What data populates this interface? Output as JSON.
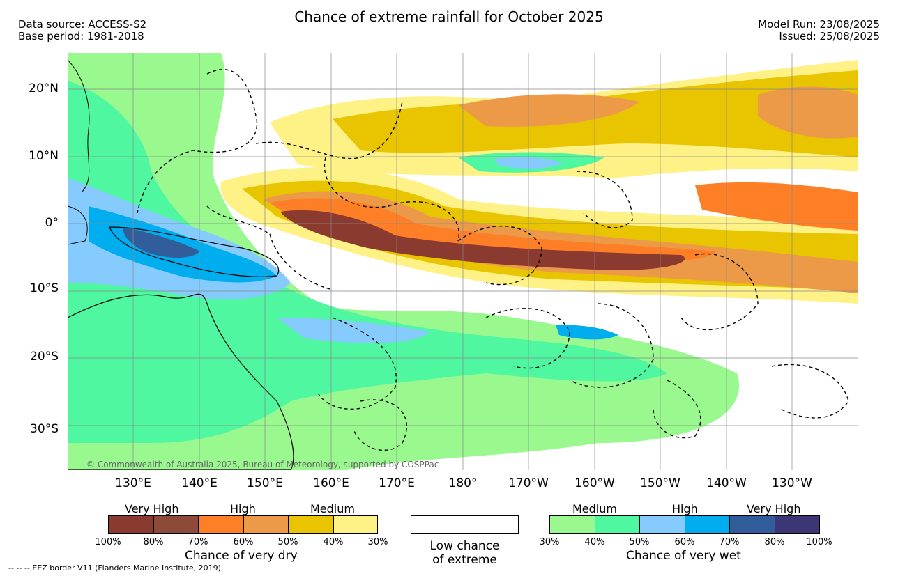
{
  "title": "Chance of extreme rainfall for October 2025",
  "data_source": "Data source: ACCESS-S2",
  "base_period": "Base period: 1981-2018",
  "model_run": "Model Run: 23/08/2025",
  "issued": "Issued: 25/08/2025",
  "lat_ticks": [
    "20°N",
    "10°N",
    "0°",
    "10°S",
    "20°S",
    "30°S"
  ],
  "lon_ticks": [
    "130°E",
    "140°E",
    "150°E",
    "160°E",
    "170°E",
    "180°",
    "170°W",
    "160°W",
    "150°W",
    "140°W",
    "130°W"
  ],
  "copyright": "© Commonwealth of Australia 2025, Bureau of Meteorology, supported by COSPPac",
  "dry_legend": {
    "headers": [
      "Very High",
      "High",
      "Medium"
    ],
    "colors": [
      "#8b3a2f",
      "#8e4a38",
      "#fe7f25",
      "#ec9a48",
      "#e9c400",
      "#fef185"
    ],
    "labels": [
      "100%",
      "80%",
      "70%",
      "60%",
      "50%",
      "40%",
      "30%"
    ],
    "title": "Chance of very dry"
  },
  "low_legend": {
    "line1": "Low chance",
    "line2": "of extreme",
    "color": "#ffffff"
  },
  "wet_legend": {
    "headers": [
      "Medium",
      "High",
      "Very High"
    ],
    "colors": [
      "#99f98f",
      "#4ff7a0",
      "#85cbfe",
      "#00aeef",
      "#325d9b",
      "#3d3675"
    ],
    "labels": [
      "30%",
      "40%",
      "50%",
      "60%",
      "70%",
      "80%",
      "100%"
    ],
    "title": "Chance of very wet"
  },
  "footer": "--  --  -- EEZ border V11 (Flanders Marine Institute, 2019)."
}
